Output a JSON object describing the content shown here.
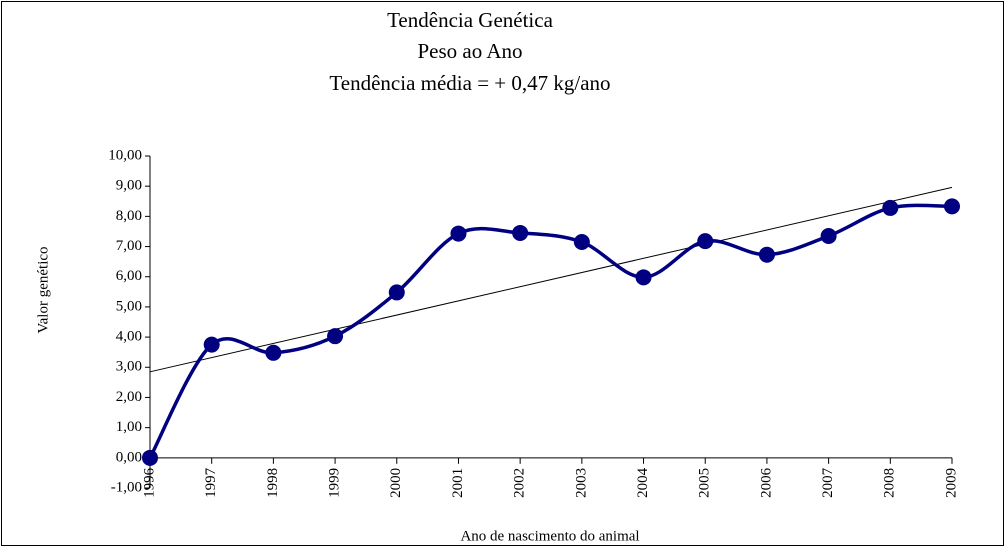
{
  "chart_data": {
    "type": "line",
    "title": "Tendência  Genética",
    "subtitle": "Peso ao Ano",
    "annotation": "Tendência média  =  + 0,47 kg/ano",
    "x_label": "Ano de nascimento do animal",
    "y_label": "Valor genético",
    "categories": [
      "1996",
      "1997",
      "1998",
      "1999",
      "2000",
      "2001",
      "2002",
      "2003",
      "2004",
      "2005",
      "2006",
      "2007",
      "2008",
      "2009"
    ],
    "series": [
      {
        "color": "#000080",
        "values": [
          0.0,
          3.75,
          3.48,
          4.03,
          5.48,
          7.43,
          7.45,
          7.15,
          5.98,
          7.18,
          6.73,
          7.35,
          8.28,
          8.33
        ]
      }
    ],
    "trendline": [
      2.85,
      8.96
    ],
    "smooth": true,
    "grid": false,
    "ylim": [
      -1,
      10
    ],
    "yticks": [
      {
        "value": -1,
        "label": "-1,00"
      },
      {
        "value": 0,
        "label": "0,00"
      },
      {
        "value": 1,
        "label": "1,00"
      },
      {
        "value": 2,
        "label": "2,00"
      },
      {
        "value": 3,
        "label": "3,00"
      },
      {
        "value": 4,
        "label": "4,00"
      },
      {
        "value": 5,
        "label": "5,00"
      },
      {
        "value": 6,
        "label": "6,00"
      },
      {
        "value": 7,
        "label": "7,00"
      },
      {
        "value": 8,
        "label": "8,00"
      },
      {
        "value": 9,
        "label": "9,00"
      },
      {
        "value": 10,
        "label": "10,00"
      }
    ]
  }
}
